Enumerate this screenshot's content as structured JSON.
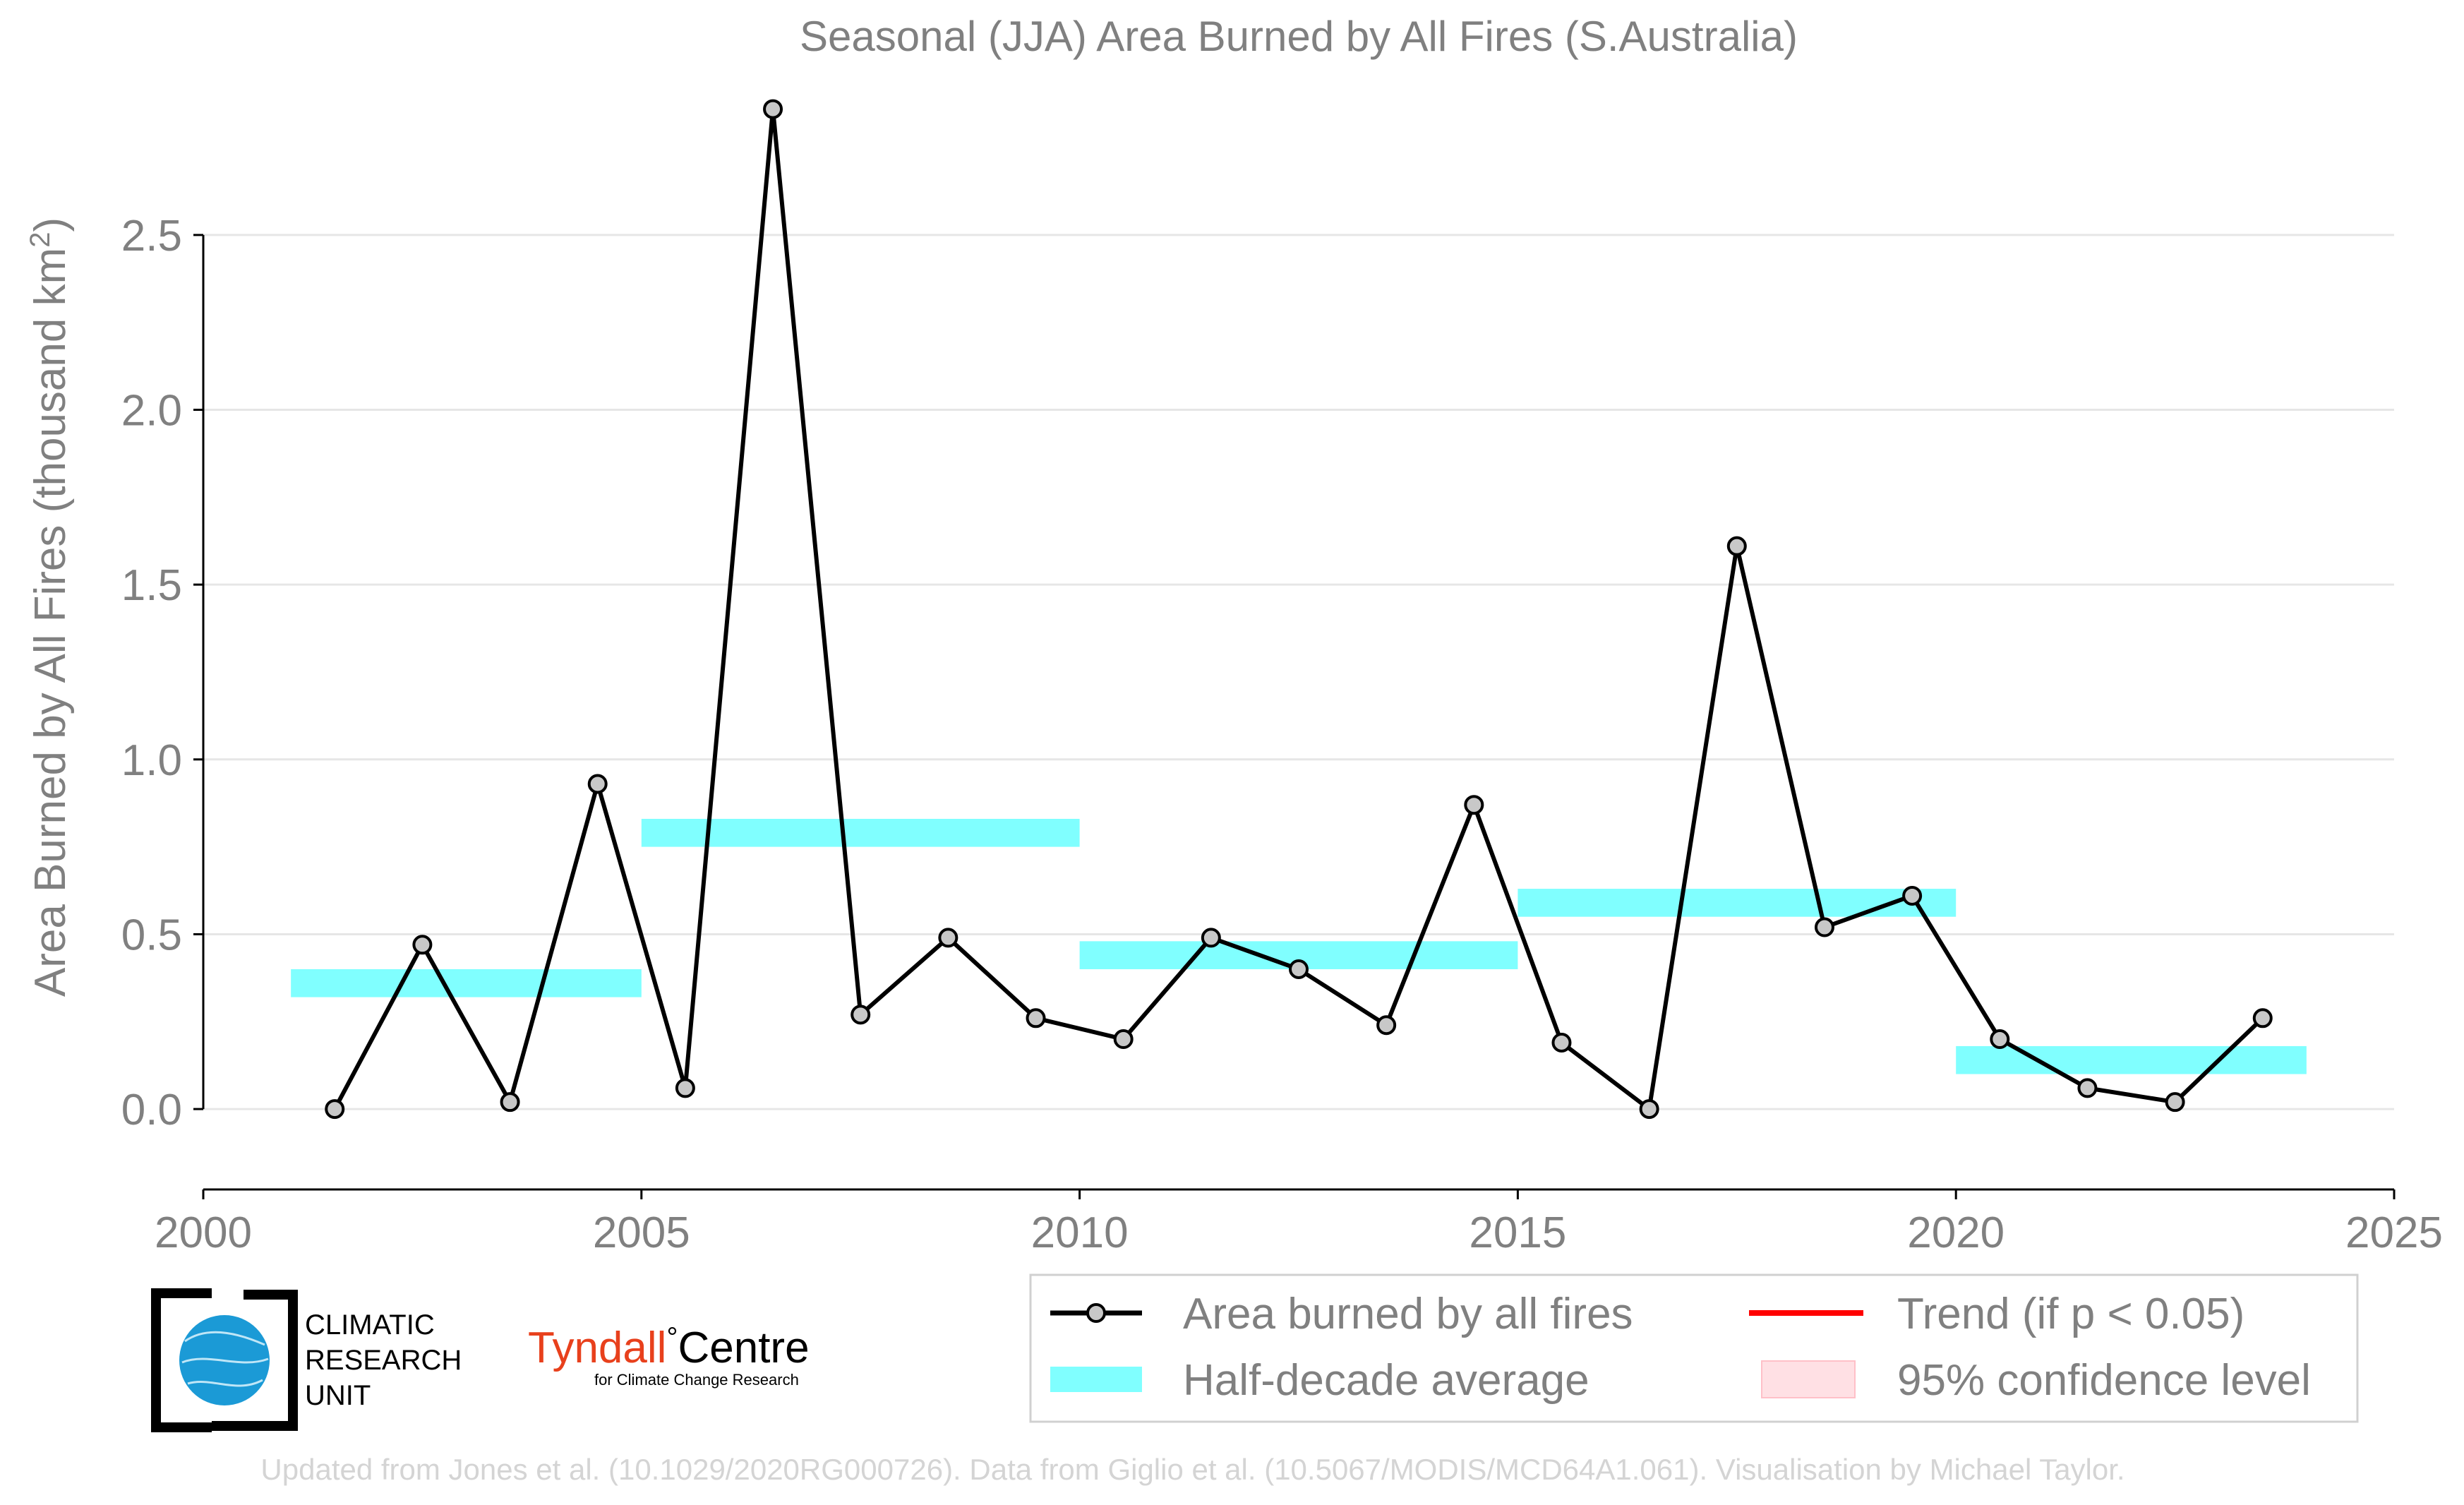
{
  "chart_data": {
    "type": "line",
    "title": "Seasonal (JJA) Area Burned by All Fires (S.Australia)",
    "ylabel_main": "Area Burned by All Fires (thousand km",
    "ylabel_sup": "2",
    "ylabel_close": ")",
    "xlabel": "",
    "xlim": [
      2000,
      2025
    ],
    "ylim": [
      -0.23,
      2.95
    ],
    "x_ticks": [
      2000,
      2005,
      2010,
      2015,
      2020,
      2025
    ],
    "x_tick_labels": [
      "2000",
      "2005",
      "2010",
      "2015",
      "2020",
      "2025"
    ],
    "y_ticks": [
      0.0,
      0.5,
      1.0,
      1.5,
      2.0,
      2.5
    ],
    "y_tick_labels": [
      "0.0",
      "0.5",
      "1.0",
      "1.5",
      "2.0",
      "2.5"
    ],
    "grid": "horizontal",
    "legend_position": "bottom-right",
    "series": [
      {
        "name": "Area burned by all fires",
        "color": "#000000",
        "marker_fill": "#c8c8c8",
        "x": [
          2001.5,
          2002.5,
          2003.5,
          2004.5,
          2005.5,
          2006.5,
          2007.5,
          2008.5,
          2009.5,
          2010.5,
          2011.5,
          2012.5,
          2013.5,
          2014.5,
          2015.5,
          2016.5,
          2017.5,
          2018.5,
          2019.5,
          2020.5,
          2021.5,
          2022.5,
          2023.5
        ],
        "values": [
          0.0,
          0.47,
          0.02,
          0.93,
          0.06,
          2.86,
          0.27,
          0.49,
          0.26,
          0.2,
          0.49,
          0.4,
          0.24,
          0.87,
          0.19,
          0.0,
          1.61,
          0.52,
          0.61,
          0.2,
          0.06,
          0.02,
          0.26
        ]
      }
    ],
    "half_decade_average": {
      "name": "Half-decade average",
      "color": "#80ffff",
      "segments": [
        {
          "x_start": 2001,
          "x_end": 2005,
          "value": 0.36
        },
        {
          "x_start": 2005,
          "x_end": 2010,
          "value": 0.79
        },
        {
          "x_start": 2010,
          "x_end": 2015,
          "value": 0.44
        },
        {
          "x_start": 2015,
          "x_end": 2020,
          "value": 0.59
        },
        {
          "x_start": 2020,
          "x_end": 2024,
          "value": 0.14
        }
      ]
    },
    "legend": [
      {
        "label": "Area burned by all fires",
        "style": "line-marker",
        "color": "#000000"
      },
      {
        "label": "Trend (if p < 0.05)",
        "style": "line",
        "color": "#ff0000"
      },
      {
        "label": "Half-decade average",
        "style": "band",
        "color": "#80ffff"
      },
      {
        "label": "95% confidence level",
        "style": "band",
        "color": "#ffe0e4"
      }
    ]
  },
  "logos": {
    "cru_lines": [
      "CLIMATIC",
      "RESEARCH",
      "UNIT"
    ],
    "tyndall_name": "Tyndall",
    "tyndall_degree": "°",
    "tyndall_centre": "Centre",
    "tyndall_sub": "for Climate Change Research"
  },
  "footer": {
    "credit": "Updated from Jones et al. (10.1029/2020RG000726). Data from Giglio et al. (10.5067/MODIS/MCD64A1.061). Visualisation by Michael Taylor."
  }
}
